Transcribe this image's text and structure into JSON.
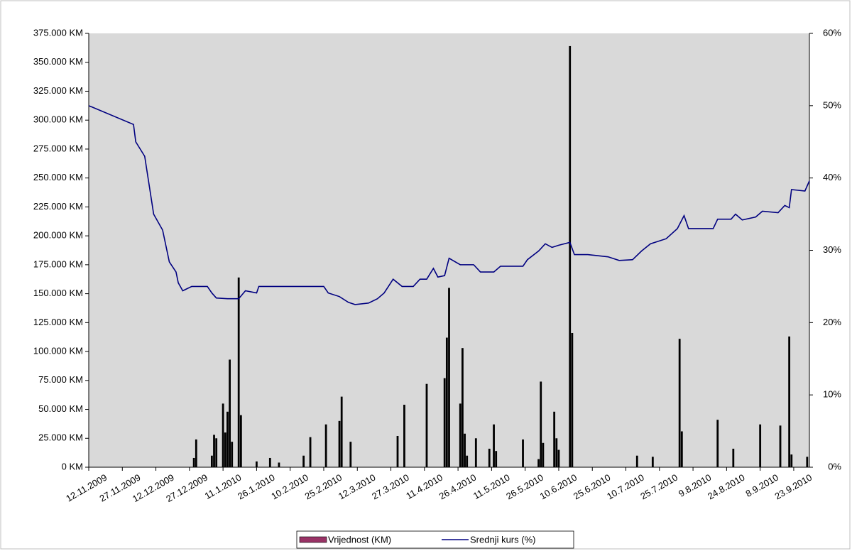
{
  "chart_data": {
    "type": "bar-line",
    "xlim": [
      "12.11.2009",
      "30.9.2010"
    ],
    "xticks": [
      "12.11.2009",
      "27.11.2009",
      "12.12.2009",
      "27.12.2009",
      "11.1.2010",
      "26.1.2010",
      "10.2.2010",
      "25.2.2010",
      "12.3.2010",
      "27.3.2010",
      "11.4.2010",
      "26.4.2010",
      "11.5.2010",
      "26.5.2010",
      "10.6.2010",
      "25.6.2010",
      "10.7.2010",
      "25.7.2010",
      "9.8.2010",
      "24.8.2010",
      "8.9.2010",
      "23.9.2010"
    ],
    "ylim": [
      0,
      375000
    ],
    "yticks": [
      {
        "value": 0,
        "label": "0 KM"
      },
      {
        "value": 25000,
        "label": "25.000 KM"
      },
      {
        "value": 50000,
        "label": "50.000 KM"
      },
      {
        "value": 75000,
        "label": "75.000 KM"
      },
      {
        "value": 100000,
        "label": "100.000 KM"
      },
      {
        "value": 125000,
        "label": "125.000 KM"
      },
      {
        "value": 150000,
        "label": "150.000 KM"
      },
      {
        "value": 175000,
        "label": "175.000 KM"
      },
      {
        "value": 200000,
        "label": "200.000 KM"
      },
      {
        "value": 225000,
        "label": "225.000 KM"
      },
      {
        "value": 250000,
        "label": "250.000 KM"
      },
      {
        "value": 275000,
        "label": "275.000 KM"
      },
      {
        "value": 300000,
        "label": "300.000 KM"
      },
      {
        "value": 325000,
        "label": "325.000 KM"
      },
      {
        "value": 350000,
        "label": "350.000 KM"
      },
      {
        "value": 375000,
        "label": "375.000 KM"
      }
    ],
    "y2lim": [
      0,
      60
    ],
    "y2ticks": [
      {
        "value": 0,
        "label": "0%"
      },
      {
        "value": 10,
        "label": "10%"
      },
      {
        "value": 20,
        "label": "20%"
      },
      {
        "value": 30,
        "label": "30%"
      },
      {
        "value": 40,
        "label": "40%"
      },
      {
        "value": 50,
        "label": "50%"
      },
      {
        "value": 60,
        "label": "60%"
      }
    ],
    "legend": "bottom",
    "series": [
      {
        "name": "Vrijednost (KM)",
        "type": "bar",
        "color": "#000000",
        "legend_color": "#993366",
        "x": [
          "29.12.2009",
          "30.12.2009",
          "6.1.2010",
          "7.1.2010",
          "8.1.2010",
          "11.1.2010",
          "12.1.2010",
          "13.1.2010",
          "14.1.2010",
          "15.1.2010",
          "18.1.2010",
          "19.1.2010",
          "26.1.2010",
          "1.2.2010",
          "5.2.2010",
          "16.2.2010",
          "19.2.2010",
          "26.2.2010",
          "4.3.2010",
          "5.3.2010",
          "9.3.2010",
          "30.3.2010",
          "2.4.2010",
          "12.4.2010",
          "20.4.2010",
          "21.4.2010",
          "22.4.2010",
          "27.4.2010",
          "28.4.2010",
          "29.4.2010",
          "30.4.2010",
          "4.5.2010",
          "10.5.2010",
          "12.5.2010",
          "13.5.2010",
          "25.5.2010",
          "1.6.2010",
          "2.6.2010",
          "3.6.2010",
          "8.6.2010",
          "9.6.2010",
          "10.6.2010",
          "15.6.2010",
          "16.6.2010",
          "15.7.2010",
          "22.7.2010",
          "3.8.2010",
          "4.8.2010",
          "20.8.2010",
          "27.8.2010",
          "8.9.2010",
          "17.9.2010",
          "21.9.2010",
          "22.9.2010",
          "29.9.2010"
        ],
        "values": [
          8000,
          24000,
          10000,
          28000,
          25000,
          55000,
          30000,
          48000,
          93000,
          22000,
          164000,
          45000,
          5000,
          8000,
          4000,
          10000,
          26000,
          37000,
          40000,
          61000,
          22000,
          27000,
          54000,
          72000,
          77000,
          112000,
          155000,
          55000,
          103000,
          29000,
          10000,
          25000,
          16000,
          37000,
          14000,
          24000,
          7000,
          74000,
          21000,
          48000,
          25000,
          15000,
          364000,
          116000,
          10000,
          9000,
          111000,
          31000,
          41000,
          16000,
          37000,
          36000,
          113000,
          11000,
          9000
        ]
      },
      {
        "name": "Srednji kurs (%)",
        "type": "line",
        "axis": "y2",
        "color": "#000080",
        "x": [
          "12.11.2009",
          "2.12.2009",
          "3.12.2009",
          "7.12.2009",
          "11.12.2009",
          "15.12.2009",
          "18.12.2009",
          "21.12.2009",
          "22.12.2009",
          "24.12.2009",
          "28.12.2009",
          "4.1.2010",
          "6.1.2010",
          "8.1.2010",
          "13.1.2010",
          "18.1.2010",
          "21.1.2010",
          "26.1.2010",
          "27.1.2010",
          "25.2.2010",
          "27.2.2010",
          "4.3.2010",
          "8.3.2010",
          "11.3.2010",
          "17.3.2010",
          "21.3.2010",
          "24.3.2010",
          "28.3.2010",
          "1.4.2010",
          "6.4.2010",
          "9.4.2010",
          "12.4.2010",
          "15.4.2010",
          "17.4.2010",
          "20.4.2010",
          "22.4.2010",
          "27.4.2010",
          "3.5.2010",
          "6.5.2010",
          "12.5.2010",
          "15.5.2010",
          "25.5.2010",
          "27.5.2010",
          "1.6.2010",
          "4.6.2010",
          "7.6.2010",
          "10.6.2010",
          "15.6.2010",
          "17.6.2010",
          "23.6.2010",
          "2.7.2010",
          "7.7.2010",
          "13.7.2010",
          "17.7.2010",
          "21.7.2010",
          "28.7.2010",
          "2.8.2010",
          "5.8.2010",
          "7.8.2010",
          "18.8.2010",
          "20.8.2010",
          "26.8.2010",
          "28.8.2010",
          "31.8.2010",
          "6.9.2010",
          "9.9.2010",
          "16.9.2010",
          "19.9.2010",
          "21.9.2010",
          "22.9.2010",
          "28.9.2010",
          "30.9.2010"
        ],
        "values": [
          50.0,
          47.4,
          45.0,
          43.0,
          35.0,
          32.8,
          28.4,
          27.0,
          25.5,
          24.4,
          25.0,
          25.0,
          24.1,
          23.4,
          23.3,
          23.3,
          24.4,
          24.1,
          25.0,
          25.0,
          24.1,
          23.6,
          22.8,
          22.5,
          22.7,
          23.3,
          24.1,
          26.0,
          25.0,
          25.0,
          26.0,
          26.0,
          27.5,
          26.3,
          26.5,
          28.9,
          28.0,
          28.0,
          27.0,
          27.0,
          27.8,
          27.8,
          28.7,
          29.9,
          30.9,
          30.4,
          30.7,
          31.1,
          29.4,
          29.4,
          29.1,
          28.6,
          28.7,
          29.9,
          30.9,
          31.6,
          33.0,
          34.8,
          33.0,
          33.0,
          34.3,
          34.3,
          35.0,
          34.2,
          34.6,
          35.4,
          35.2,
          36.2,
          35.9,
          38.4,
          38.2,
          39.6
        ]
      }
    ]
  }
}
